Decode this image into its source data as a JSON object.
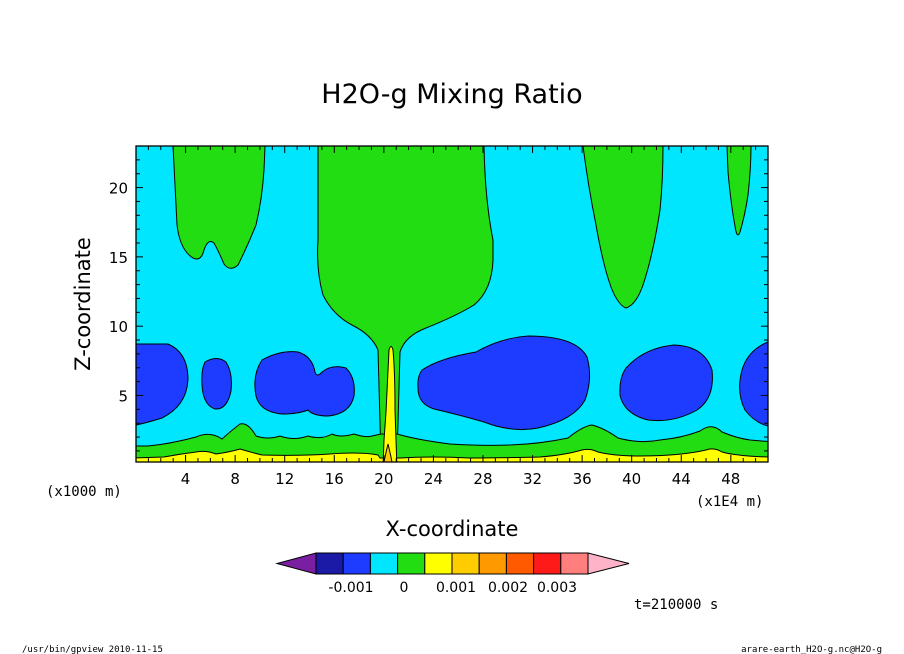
{
  "chart_data": {
    "type": "contour",
    "title": "H2O-g Mixing Ratio",
    "xlabel": "X-coordinate",
    "ylabel": "Z-coordinate",
    "x_unit_left": "(x1000 m)",
    "x_unit_right": "(x1E4 m)",
    "xlim": [
      0,
      51
    ],
    "ylim": [
      0.2,
      23
    ],
    "x_ticks": [
      4,
      8,
      12,
      16,
      20,
      24,
      28,
      32,
      36,
      40,
      44,
      48
    ],
    "y_ticks": [
      5,
      10,
      15,
      20
    ],
    "colorbar": {
      "tick_labels": [
        "-0.001",
        "0",
        "0.001",
        "0.002",
        "0.003"
      ],
      "colors": [
        "#7b1fa2",
        "#1a1aa6",
        "#1e3cff",
        "#00e6ff",
        "#22dd11",
        "#ffff00",
        "#ffcc00",
        "#ff9900",
        "#ff5a00",
        "#ff1a1a",
        "#ff7f7f",
        "#ffb3c8"
      ]
    },
    "regions": [
      {
        "name": "low-layer-green",
        "level": "0 to 0.001",
        "description": "continuous layer near surface, z from about 0.5 to 1.5"
      },
      {
        "name": "surface-yellow",
        "level": "0.001 to 0.002",
        "description": "thin band at surface"
      },
      {
        "name": "central-plume",
        "level": "0.001 to 0.002",
        "x": 20.6,
        "z_top": 8.5
      },
      {
        "name": "upper-green-plumes",
        "level": "0 to 0.001",
        "x_centers": [
          6,
          20,
          37.5,
          48.3
        ]
      },
      {
        "name": "mid-level-blue-cells",
        "level": "-0.001 to 0",
        "x_centers": [
          3,
          6.5,
          12.5,
          15.5,
          30,
          42,
          50.5
        ],
        "z_range": [
          3,
          8.5
        ]
      }
    ]
  },
  "annotations": {
    "time": "t=210000 s",
    "footer_left": "/usr/bin/gpview  2010-11-15",
    "footer_right": "arare-earth_H2O-g.nc@H2O-g"
  }
}
